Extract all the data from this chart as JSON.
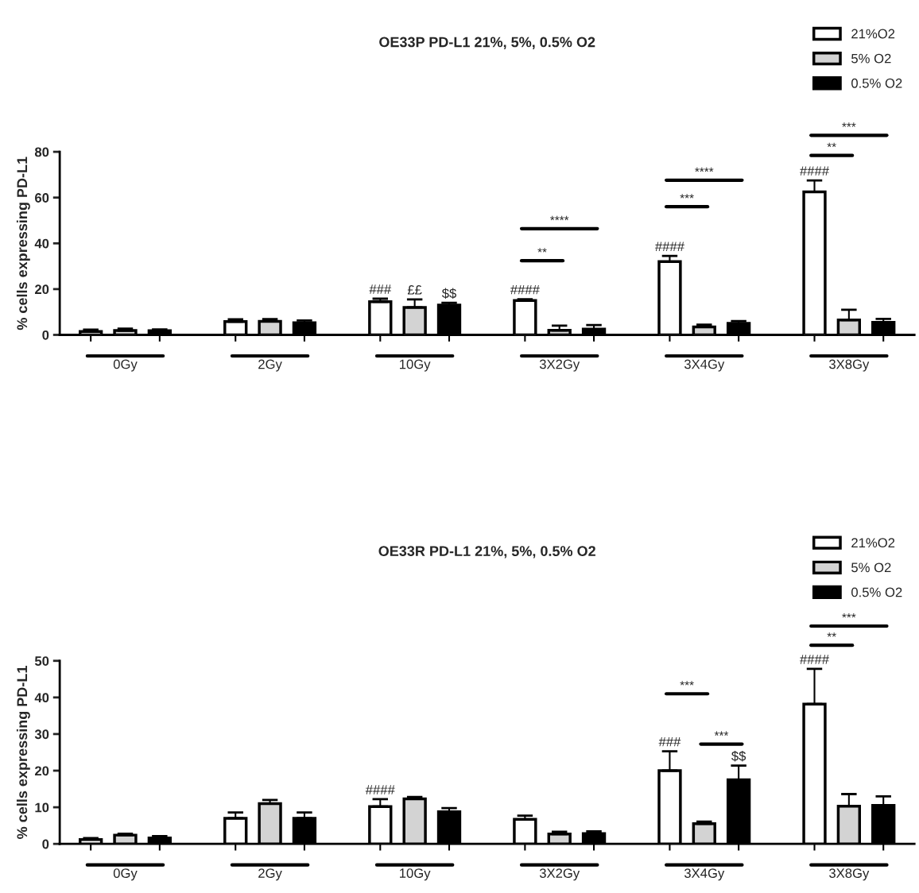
{
  "chart_data": [
    {
      "type": "bar",
      "title": "OE33P PD-L1 21%, 5%, 0.5% O2",
      "ylabel": "% cells expressing PD-L1",
      "categories": [
        "0Gy",
        "2Gy",
        "10Gy",
        "3X2Gy",
        "3X4Gy",
        "3X8Gy"
      ],
      "series": [
        {
          "name": "21%O2",
          "color": "#ffffff",
          "values": [
            1.5,
            5.8,
            14.5,
            15,
            32,
            62.5
          ],
          "errors": [
            0.8,
            1,
            1.3,
            0.6,
            2.5,
            5
          ],
          "value_labels": [
            null,
            null,
            "###",
            "####",
            "####",
            "####"
          ]
        },
        {
          "name": "5% O2",
          "color": "#d3d3d3",
          "values": [
            1.9,
            5.9,
            12,
            2,
            3.5,
            6.5
          ],
          "errors": [
            0.8,
            1,
            3.5,
            2,
            1,
            4.5
          ],
          "value_labels": [
            null,
            null,
            "££",
            null,
            null,
            null
          ]
        },
        {
          "name": "0.5% O2",
          "color": "#000000",
          "values": [
            1.8,
            5.3,
            13,
            2.5,
            5,
            5.5
          ],
          "errors": [
            0.6,
            1,
            1,
            1.8,
            1,
            1.5
          ],
          "value_labels": [
            null,
            null,
            "$$",
            null,
            null,
            null
          ]
        }
      ],
      "ylim": [
        0,
        80
      ],
      "yticks": [
        0,
        20,
        40,
        60,
        80
      ],
      "grid": false,
      "legend": "top right",
      "annotations": [
        "**",
        "****",
        "***",
        "****",
        "**",
        "***"
      ]
    },
    {
      "type": "bar",
      "title": "OE33R PD-L1 21%, 5%, 0.5% O2",
      "ylabel": "% cells expressing PD-L1",
      "categories": [
        "0Gy",
        "2Gy",
        "10Gy",
        "3X2Gy",
        "3X4Gy",
        "3X8Gy"
      ],
      "series": [
        {
          "name": "21%O2",
          "color": "#ffffff",
          "values": [
            1.2,
            7,
            10.2,
            6.7,
            20,
            38.2
          ],
          "errors": [
            0.4,
            1.6,
            2,
            1,
            5.3,
            9.6
          ],
          "value_labels": [
            null,
            null,
            "####",
            null,
            "###",
            "####"
          ]
        },
        {
          "name": "5% O2",
          "color": "#d3d3d3",
          "values": [
            2.4,
            11,
            12.3,
            2.7,
            5.5,
            10.3
          ],
          "errors": [
            0.4,
            1,
            0.5,
            0.6,
            0.6,
            3.3
          ],
          "value_labels": [
            null,
            null,
            null,
            null,
            null,
            null
          ]
        },
        {
          "name": "0.5% O2",
          "color": "#000000",
          "values": [
            1.6,
            7,
            8.8,
            2.8,
            17.5,
            10.5
          ],
          "errors": [
            0.5,
            1.6,
            1,
            0.6,
            3.9,
            2.5
          ],
          "value_labels": [
            null,
            null,
            null,
            null,
            "$$",
            null
          ]
        }
      ],
      "ylim": [
        0,
        50
      ],
      "yticks": [
        0,
        10,
        20,
        30,
        40,
        50
      ],
      "grid": false,
      "legend": "top right",
      "annotations": [
        "***",
        "***",
        "**",
        "***"
      ]
    }
  ]
}
